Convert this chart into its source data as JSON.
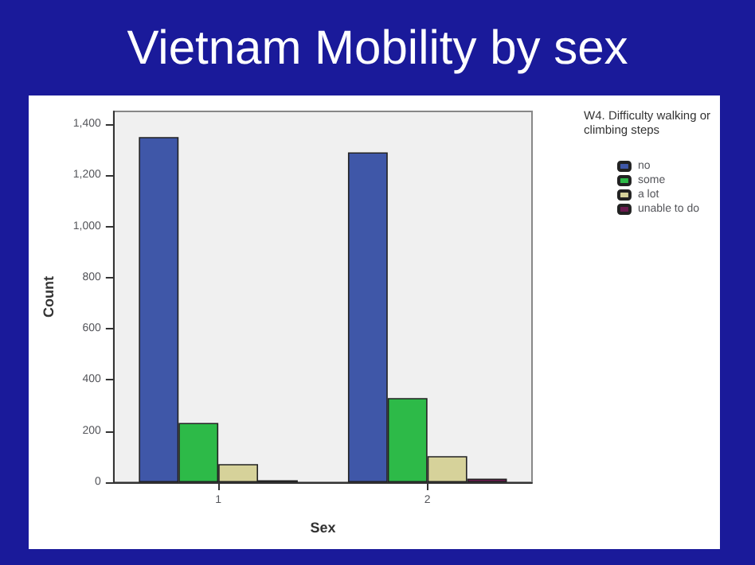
{
  "chart_data": {
    "type": "bar",
    "title": "Vietnam Mobility by sex",
    "xlabel": "Sex",
    "ylabel": "Count",
    "legend_title": "W4. Difficulty walking or\nclimbing steps",
    "categories": [
      "1",
      "2"
    ],
    "series": [
      {
        "name": "no",
        "color": "#3f57a8",
        "values": [
          1350,
          1290
        ]
      },
      {
        "name": "some",
        "color": "#2dba48",
        "values": [
          232,
          329
        ]
      },
      {
        "name": "a lot",
        "color": "#d6d29a",
        "values": [
          71,
          102
        ]
      },
      {
        "name": "unable to do",
        "color": "#6b1a4f",
        "values": [
          8,
          14
        ]
      }
    ],
    "ylim": [
      0,
      1450
    ],
    "yticks": [
      0,
      200,
      400,
      600,
      800,
      {
        "value": 1000,
        "label": "1,000"
      },
      {
        "value": 1200,
        "label": "1,200"
      },
      {
        "value": 1400,
        "label": "1,400"
      }
    ],
    "grid": false,
    "legend": "top right"
  }
}
